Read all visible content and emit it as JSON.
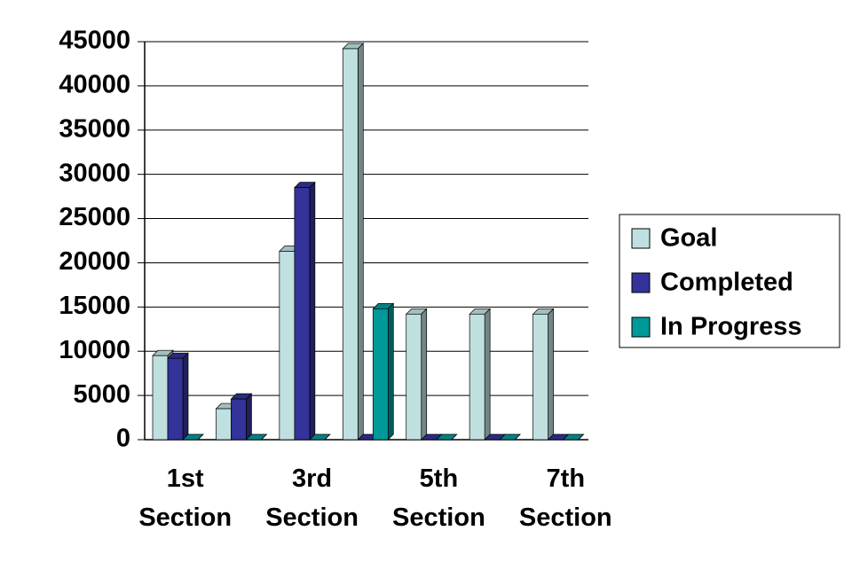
{
  "chart_data": {
    "type": "bar3d",
    "categories": [
      "1st Section",
      null,
      "3rd Section",
      null,
      "5th Section",
      null,
      "7th Section"
    ],
    "series": [
      {
        "name": "Goal",
        "color": "#c0e0e0",
        "values": [
          9500,
          3500,
          21300,
          44200,
          14200,
          14200,
          14200
        ]
      },
      {
        "name": "Completed",
        "color": "#333399",
        "values": [
          9200,
          4600,
          28500,
          0,
          0,
          0,
          0
        ]
      },
      {
        "name": "In Progress",
        "color": "#009999",
        "values": [
          0,
          0,
          0,
          14800,
          0,
          0,
          0
        ]
      }
    ],
    "ylim": [
      0,
      45000
    ],
    "yticks": [
      0,
      5000,
      10000,
      15000,
      20000,
      25000,
      30000,
      35000,
      40000,
      45000
    ],
    "grid": true,
    "legend": "right"
  }
}
